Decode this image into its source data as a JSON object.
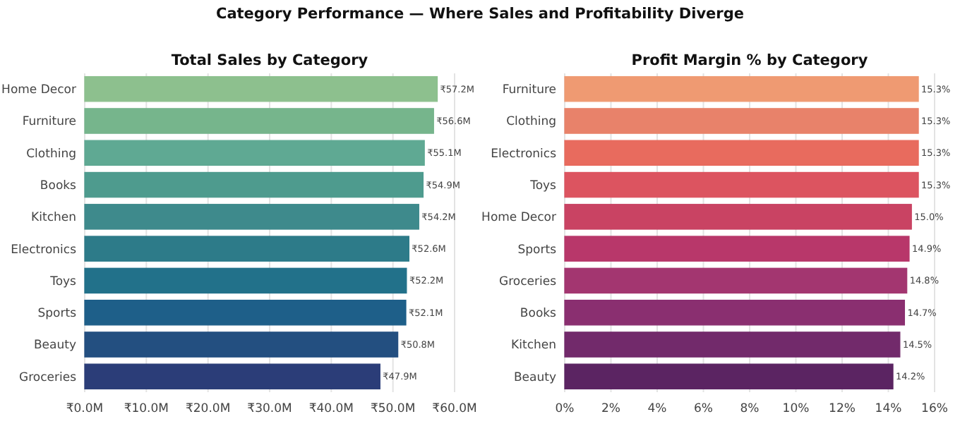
{
  "chart_data": [
    {
      "type": "bar",
      "orientation": "horizontal",
      "title": "Total Sales by Category",
      "annotations": [
        "Category Performance — Where Sales and Profitability Diverge"
      ],
      "categories": [
        "Home Decor",
        "Furniture",
        "Clothing",
        "Books",
        "Kitchen",
        "Electronics",
        "Toys",
        "Sports",
        "Beauty",
        "Groceries"
      ],
      "values": [
        57.2,
        56.6,
        55.1,
        54.9,
        54.2,
        52.6,
        52.2,
        52.1,
        50.8,
        47.9
      ],
      "colors": [
        "#8dc08e",
        "#76b58c",
        "#5fa993",
        "#4e9b8e",
        "#3e8a8c",
        "#2d7b89",
        "#22718a",
        "#1e5f89",
        "#234f80",
        "#2b3d78"
      ],
      "value_labels": [
        "₹57.2M",
        "₹56.6M",
        "₹55.1M",
        "₹54.9M",
        "₹54.2M",
        "₹52.6M",
        "₹52.2M",
        "₹52.1M",
        "₹50.8M",
        "₹47.9M"
      ],
      "xlim": [
        0,
        60
      ],
      "xticks": [
        {
          "value": 0,
          "label": "₹0.0M"
        },
        {
          "value": 10,
          "label": "₹10.0M"
        },
        {
          "value": 20,
          "label": "₹20.0M"
        },
        {
          "value": 30,
          "label": "₹30.0M"
        },
        {
          "value": 40,
          "label": "₹40.0M"
        },
        {
          "value": 50,
          "label": "₹50.0M"
        },
        {
          "value": 60,
          "label": "₹60.0M"
        }
      ],
      "grid": "x"
    },
    {
      "type": "bar",
      "orientation": "horizontal",
      "title": "Profit Margin % by Category",
      "categories": [
        "Furniture",
        "Clothing",
        "Electronics",
        "Toys",
        "Home Decor",
        "Sports",
        "Groceries",
        "Books",
        "Kitchen",
        "Beauty"
      ],
      "values": [
        15.3,
        15.3,
        15.3,
        15.3,
        15.0,
        14.9,
        14.8,
        14.7,
        14.5,
        14.2
      ],
      "colors": [
        "#ef9a72",
        "#e8826a",
        "#e86b5e",
        "#dc5460",
        "#c94363",
        "#b8376a",
        "#a33670",
        "#8a2f70",
        "#722a6b",
        "#5b2462"
      ],
      "value_labels": [
        "15.3%",
        "15.3%",
        "15.3%",
        "15.3%",
        "15.0%",
        "14.9%",
        "14.8%",
        "14.7%",
        "14.5%",
        "14.2%"
      ],
      "xlim": [
        0,
        16
      ],
      "xticks": [
        {
          "value": 0,
          "label": "0%"
        },
        {
          "value": 2,
          "label": "2%"
        },
        {
          "value": 4,
          "label": "4%"
        },
        {
          "value": 6,
          "label": "6%"
        },
        {
          "value": 8,
          "label": "8%"
        },
        {
          "value": 10,
          "label": "10%"
        },
        {
          "value": 12,
          "label": "12%"
        },
        {
          "value": 14,
          "label": "14%"
        },
        {
          "value": 16,
          "label": "16%"
        }
      ],
      "grid": "x"
    }
  ]
}
